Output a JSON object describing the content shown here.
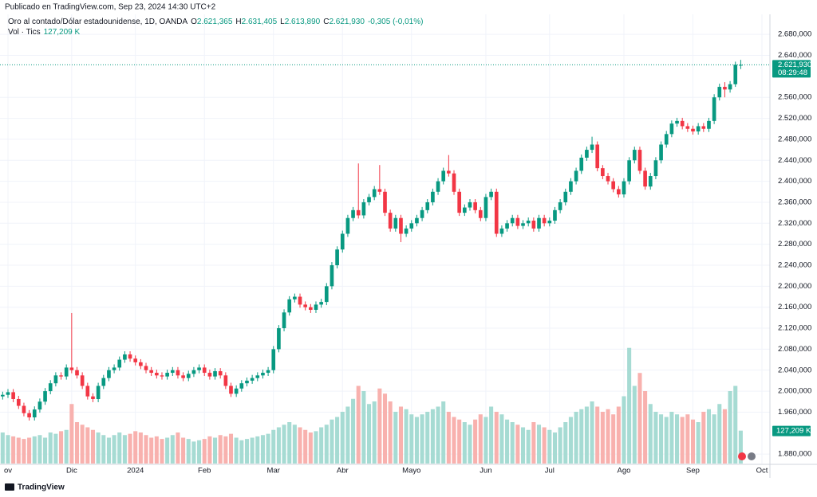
{
  "chart_data": {
    "type": "candlestick",
    "published": "Publicado en TradingView.com, Sep 23, 2024 14:30 UTC+2",
    "title": "Oro al contado/Dólar estadounidense, 1D, OANDA",
    "legend_items": [
      {
        "key": "O",
        "label": "2.621,365"
      },
      {
        "key": "H",
        "label": "2.631,405"
      },
      {
        "key": "L",
        "label": "2.613,890"
      },
      {
        "key": "C",
        "label": "2.621,930"
      }
    ],
    "change_label": "-0,305 (-0,01%)",
    "volume_title": "Vol · Tics",
    "branding": "TradingView",
    "up_color": "#089981",
    "down_color": "#f23645",
    "volume_up_color": "#a6dbd3",
    "volume_down_color": "#f8b1ae",
    "grid": true,
    "xlim": [
      -0.5,
      144.5
    ],
    "xticks": [
      {
        "value": 1,
        "label": "ov"
      },
      {
        "value": 13,
        "label": "Dic"
      },
      {
        "value": 25,
        "label": "2024"
      },
      {
        "value": 38,
        "label": "Feb"
      },
      {
        "value": 51,
        "label": "Mar"
      },
      {
        "value": 64,
        "label": "Abr"
      },
      {
        "value": 77,
        "label": "Mayo"
      },
      {
        "value": 91,
        "label": "Jun"
      },
      {
        "value": 103,
        "label": "Jul"
      },
      {
        "value": 117,
        "label": "Ago"
      },
      {
        "value": 130,
        "label": "Sep"
      },
      {
        "value": 143,
        "label": "Oct"
      }
    ],
    "ylim": [
      1862,
      2700
    ],
    "yticks": [
      {
        "value": 1880,
        "label": "1.880,000"
      },
      {
        "value": 1960,
        "label": "1.960,000"
      },
      {
        "value": 2000,
        "label": "2.000,000"
      },
      {
        "value": 2040,
        "label": "2.040,000"
      },
      {
        "value": 2080,
        "label": "2.080,000"
      },
      {
        "value": 2120,
        "label": "2.120,000"
      },
      {
        "value": 2160,
        "label": "2.160,000"
      },
      {
        "value": 2200,
        "label": "2.200,000"
      },
      {
        "value": 2240,
        "label": "2.240,000"
      },
      {
        "value": 2280,
        "label": "2.280,000"
      },
      {
        "value": 2320,
        "label": "2.320,000"
      },
      {
        "value": 2360,
        "label": "2.360,000"
      },
      {
        "value": 2400,
        "label": "2.400,000"
      },
      {
        "value": 2440,
        "label": "2.440,000"
      },
      {
        "value": 2480,
        "label": "2.480,000"
      },
      {
        "value": 2520,
        "label": "2.520,000"
      },
      {
        "value": 2560,
        "label": "2.560,000"
      },
      {
        "value": 2640,
        "label": "2.640,000"
      },
      {
        "value": 2680,
        "label": "2.680,000"
      }
    ],
    "vlim": [
      0,
      520
    ],
    "last_price": {
      "value": 2621.93,
      "label": "2.621,930"
    },
    "countdown": "08:29:48",
    "volume_tag": {
      "value": 127.209,
      "label": "127,209 K"
    },
    "open": [
      1990,
      1993,
      1998,
      1985,
      1972,
      1958,
      1950,
      1965,
      1980,
      2000,
      2015,
      2030,
      2028,
      2045,
      2040,
      2030,
      2010,
      1990,
      1985,
      2010,
      2025,
      2040,
      2045,
      2060,
      2070,
      2062,
      2055,
      2048,
      2040,
      2035,
      2030,
      2028,
      2035,
      2040,
      2030,
      2025,
      2033,
      2040,
      2045,
      2035,
      2028,
      2038,
      2030,
      2010,
      1995,
      2005,
      2015,
      2020,
      2025,
      2030,
      2035,
      2040,
      2080,
      2120,
      2150,
      2175,
      2180,
      2165,
      2160,
      2155,
      2165,
      2170,
      2200,
      2240,
      2270,
      2300,
      2330,
      2345,
      2335,
      2360,
      2370,
      2385,
      2380,
      2340,
      2310,
      2330,
      2300,
      2310,
      2320,
      2330,
      2345,
      2360,
      2380,
      2400,
      2420,
      2415,
      2380,
      2340,
      2350,
      2360,
      2345,
      2330,
      2370,
      2380,
      2300,
      2310,
      2320,
      2330,
      2315,
      2320,
      2325,
      2310,
      2330,
      2320,
      2325,
      2345,
      2360,
      2380,
      2400,
      2420,
      2445,
      2460,
      2470,
      2425,
      2410,
      2400,
      2385,
      2375,
      2400,
      2440,
      2460,
      2420,
      2390,
      2410,
      2440,
      2470,
      2490,
      2510,
      2515,
      2505,
      2500,
      2495,
      2505,
      2500,
      2515,
      2560,
      2580,
      2575,
      2585,
      2621.365
    ],
    "high": [
      1999,
      2004,
      2004,
      1991,
      1978,
      1964,
      1971,
      1986,
      2006,
      2021,
      2036,
      2036,
      2051,
      2149,
      2046,
      2036,
      2016,
      1996,
      2016,
      2031,
      2046,
      2051,
      2066,
      2076,
      2076,
      2068,
      2061,
      2054,
      2046,
      2041,
      2036,
      2041,
      2046,
      2046,
      2036,
      2039,
      2046,
      2051,
      2051,
      2041,
      2044,
      2044,
      2036,
      2016,
      2011,
      2021,
      2026,
      2031,
      2036,
      2041,
      2046,
      2086,
      2126,
      2156,
      2181,
      2186,
      2186,
      2171,
      2166,
      2171,
      2176,
      2206,
      2246,
      2276,
      2306,
      2336,
      2351,
      2434,
      2366,
      2376,
      2391,
      2431,
      2386,
      2346,
      2336,
      2336,
      2316,
      2326,
      2336,
      2351,
      2366,
      2386,
      2406,
      2426,
      2450,
      2421,
      2386,
      2356,
      2366,
      2366,
      2351,
      2376,
      2386,
      2386,
      2316,
      2326,
      2336,
      2336,
      2326,
      2331,
      2331,
      2336,
      2336,
      2331,
      2351,
      2366,
      2386,
      2406,
      2426,
      2451,
      2466,
      2485,
      2476,
      2431,
      2416,
      2406,
      2391,
      2406,
      2446,
      2466,
      2466,
      2426,
      2416,
      2446,
      2476,
      2496,
      2516,
      2521,
      2521,
      2511,
      2506,
      2511,
      2511,
      2521,
      2566,
      2586,
      2589,
      2591,
      2628,
      2631.405
    ],
    "low": [
      1984,
      1987,
      1979,
      1966,
      1952,
      1944,
      1944,
      1959,
      1974,
      1994,
      2009,
      2022,
      2022,
      2034,
      2024,
      2004,
      1984,
      1979,
      1979,
      2004,
      2019,
      2034,
      2039,
      2054,
      2056,
      2049,
      2042,
      2034,
      2029,
      2024,
      2022,
      2022,
      2029,
      2024,
      2019,
      2019,
      2027,
      2034,
      2029,
      2022,
      2022,
      2024,
      2004,
      1989,
      1989,
      1999,
      2009,
      2014,
      2019,
      2024,
      2029,
      2034,
      2074,
      2114,
      2144,
      2169,
      2159,
      2154,
      2149,
      2149,
      2159,
      2164,
      2194,
      2234,
      2264,
      2294,
      2324,
      2329,
      2329,
      2354,
      2364,
      2374,
      2334,
      2304,
      2304,
      2284,
      2294,
      2304,
      2314,
      2324,
      2339,
      2354,
      2374,
      2394,
      2409,
      2374,
      2334,
      2334,
      2344,
      2339,
      2324,
      2324,
      2364,
      2294,
      2294,
      2304,
      2314,
      2309,
      2309,
      2314,
      2304,
      2304,
      2314,
      2314,
      2319,
      2339,
      2354,
      2374,
      2394,
      2414,
      2439,
      2454,
      2419,
      2404,
      2394,
      2379,
      2369,
      2369,
      2394,
      2434,
      2414,
      2384,
      2384,
      2404,
      2434,
      2464,
      2484,
      2504,
      2499,
      2494,
      2489,
      2489,
      2494,
      2494,
      2509,
      2554,
      2560,
      2569,
      2580,
      2613.89
    ],
    "close": [
      1993,
      1998,
      1985,
      1972,
      1958,
      1950,
      1965,
      1980,
      2000,
      2015,
      2030,
      2028,
      2045,
      2040,
      2030,
      2010,
      1990,
      1985,
      2010,
      2025,
      2040,
      2045,
      2060,
      2070,
      2062,
      2055,
      2048,
      2040,
      2035,
      2030,
      2028,
      2035,
      2040,
      2030,
      2025,
      2033,
      2040,
      2045,
      2035,
      2028,
      2038,
      2030,
      2010,
      1995,
      2005,
      2015,
      2020,
      2025,
      2030,
      2035,
      2040,
      2080,
      2120,
      2150,
      2175,
      2180,
      2165,
      2160,
      2155,
      2165,
      2170,
      2200,
      2240,
      2270,
      2300,
      2330,
      2345,
      2335,
      2360,
      2370,
      2385,
      2380,
      2340,
      2310,
      2330,
      2300,
      2310,
      2320,
      2330,
      2345,
      2360,
      2380,
      2400,
      2420,
      2415,
      2380,
      2340,
      2350,
      2360,
      2345,
      2330,
      2370,
      2380,
      2300,
      2310,
      2320,
      2330,
      2315,
      2320,
      2325,
      2310,
      2330,
      2320,
      2325,
      2345,
      2360,
      2380,
      2400,
      2420,
      2445,
      2460,
      2470,
      2425,
      2410,
      2400,
      2385,
      2375,
      2400,
      2440,
      2460,
      2420,
      2390,
      2410,
      2440,
      2470,
      2490,
      2510,
      2515,
      2505,
      2500,
      2495,
      2505,
      2500,
      2515,
      2560,
      2580,
      2575,
      2585,
      2622.235,
      2621.93
    ],
    "volume": [
      120,
      110,
      105,
      100,
      95,
      100,
      105,
      110,
      100,
      120,
      115,
      125,
      130,
      230,
      160,
      150,
      140,
      130,
      120,
      110,
      100,
      110,
      120,
      110,
      115,
      125,
      120,
      110,
      100,
      105,
      95,
      100,
      110,
      120,
      100,
      95,
      85,
      90,
      95,
      105,
      100,
      110,
      105,
      115,
      100,
      90,
      95,
      100,
      105,
      110,
      115,
      130,
      140,
      150,
      160,
      150,
      140,
      130,
      120,
      125,
      140,
      150,
      170,
      180,
      200,
      220,
      250,
      300,
      280,
      230,
      240,
      290,
      270,
      240,
      200,
      220,
      210,
      190,
      180,
      190,
      200,
      210,
      220,
      240,
      200,
      180,
      170,
      160,
      150,
      170,
      190,
      180,
      220,
      200,
      190,
      170,
      160,
      150,
      140,
      130,
      160,
      150,
      140,
      130,
      120,
      140,
      160,
      180,
      200,
      210,
      220,
      240,
      220,
      200,
      210,
      190,
      220,
      260,
      447,
      300,
      350,
      280,
      230,
      200,
      190,
      180,
      200,
      190,
      180,
      190,
      170,
      160,
      200,
      210,
      190,
      230,
      210,
      280,
      300,
      127.209
    ]
  }
}
